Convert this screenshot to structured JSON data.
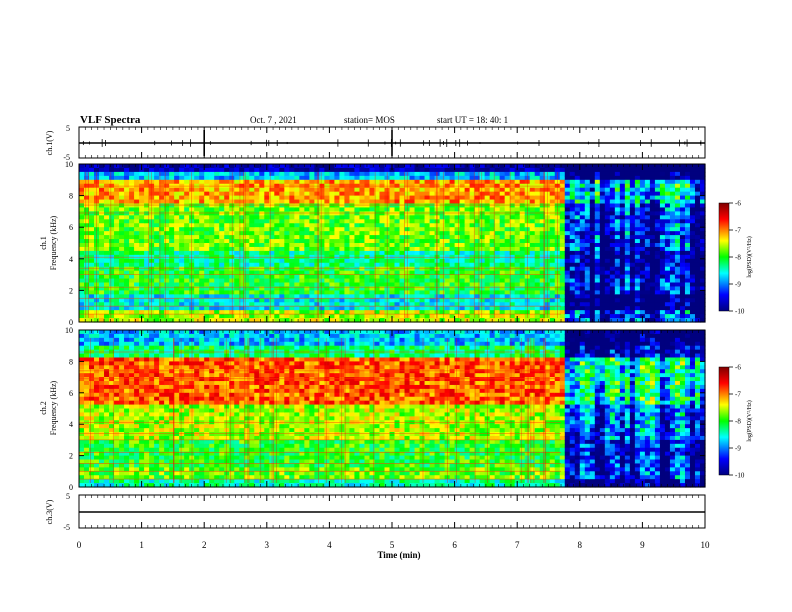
{
  "header": {
    "title": "VLF Spectra",
    "date": "Oct. 7 , 2021",
    "station": "station= MOS",
    "start": "start UT =  18: 40: 1"
  },
  "chart_data": [
    {
      "type": "line",
      "panel": "ch1-waveform",
      "ylabel": "ch.1(V)",
      "ylim": [
        -5,
        5
      ],
      "yticks": [
        {
          "label": "5",
          "value": 5
        },
        {
          "label": "-5",
          "value": -5
        }
      ],
      "series": [
        {
          "x": [
            0,
            10
          ],
          "y": [
            0,
            0
          ]
        }
      ]
    },
    {
      "type": "heatmap",
      "panel": "ch1-spectrogram",
      "ylabel": "ch.1",
      "ylabel2": "Frequency (kHz)",
      "ylim": [
        0,
        10
      ],
      "yticks": [
        "0",
        "2",
        "4",
        "6",
        "8",
        "10"
      ],
      "transition_min": 7.7,
      "colorbar": {
        "label": "log(PSD)(V²/Hz)",
        "ticks": [
          "-6",
          "-7",
          "-8",
          "-9",
          "-10"
        ],
        "range": [
          -10,
          -6
        ]
      }
    },
    {
      "type": "heatmap",
      "panel": "ch2-spectrogram",
      "ylabel": "ch.2",
      "ylabel2": "Frequency (kHz)",
      "ylim": [
        0,
        10
      ],
      "yticks": [
        "0",
        "2",
        "4",
        "6",
        "8",
        "10"
      ],
      "transition_min": 7.7,
      "colorbar": {
        "label": "log(PSD)(V²/Hz)",
        "ticks": [
          "-6",
          "-7",
          "-8",
          "-9",
          "-10"
        ],
        "range": [
          -10,
          -6
        ]
      }
    },
    {
      "type": "line",
      "panel": "ch3-waveform",
      "ylabel": "ch.3(V)",
      "ylim": [
        -5,
        5
      ],
      "yticks": [
        {
          "label": "5",
          "value": 5
        },
        {
          "label": "-5",
          "value": -5
        }
      ],
      "series": [
        {
          "x": [
            0,
            10
          ],
          "y": [
            0,
            0
          ]
        }
      ]
    }
  ],
  "xaxis": {
    "label": "Time (min)",
    "ticks": [
      "0",
      "1",
      "2",
      "3",
      "4",
      "5",
      "6",
      "7",
      "8",
      "9",
      "10"
    ],
    "range": [
      0,
      10
    ]
  },
  "colors": {
    "dark_blue": "#00007f",
    "blue": "#0000ff",
    "cyan": "#00ffff",
    "green": "#00ff00",
    "yellow": "#ffff00",
    "red": "#ff0000",
    "dark_red": "#7f0000"
  }
}
